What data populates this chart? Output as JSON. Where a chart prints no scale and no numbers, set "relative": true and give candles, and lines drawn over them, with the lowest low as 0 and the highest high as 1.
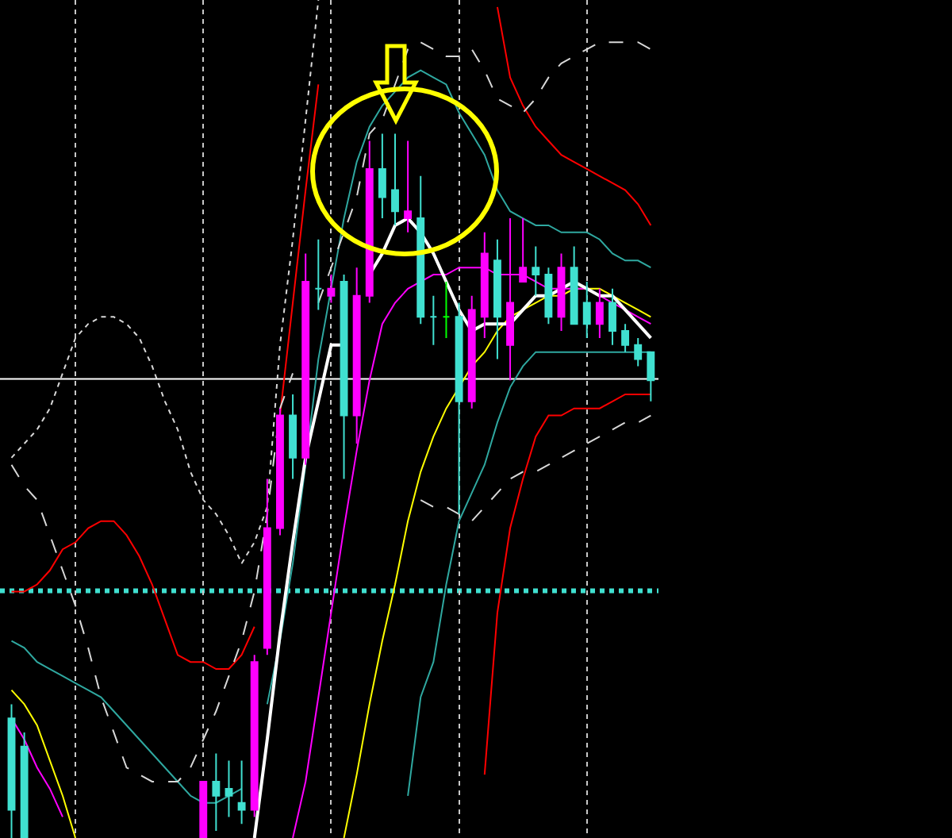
{
  "chart_data": {
    "type": "candlestick",
    "relative": true,
    "grid": "x",
    "categories": [
      null,
      null,
      null,
      null,
      null,
      null,
      null,
      null,
      null,
      null,
      null,
      null,
      null,
      null,
      null,
      null,
      null,
      null,
      null,
      null,
      null,
      null,
      null,
      null,
      null,
      null,
      null,
      null,
      null,
      null,
      null,
      null,
      null,
      null,
      null,
      null,
      null,
      null,
      null,
      null,
      null,
      null,
      null,
      null,
      null,
      null,
      null,
      null,
      null,
      null,
      null
    ],
    "ohlc": [
      [
        0.17,
        0.19,
        0,
        0.04
      ],
      [
        0.13,
        0.15,
        0,
        0
      ],
      null,
      null,
      null,
      null,
      null,
      null,
      null,
      null,
      null,
      null,
      null,
      null,
      null,
      [
        0,
        0.08,
        0,
        0.08
      ],
      [
        0.08,
        0.12,
        0.01,
        0.06
      ],
      [
        0.07,
        0.11,
        0.03,
        0.06
      ],
      [
        0.05,
        0.11,
        0.02,
        0.04
      ],
      [
        0.04,
        0.26,
        0.03,
        0.25
      ],
      [
        0.27,
        0.51,
        0.26,
        0.44
      ],
      [
        0.44,
        0.61,
        0.43,
        0.6
      ],
      [
        0.6,
        0.63,
        0.51,
        0.54
      ],
      [
        0.54,
        0.83,
        0.53,
        0.79
      ],
      [
        0.78,
        0.85,
        0.75,
        0.78
      ],
      [
        0.77,
        0.8,
        0.76,
        0.78
      ],
      [
        0.79,
        0.8,
        0.51,
        0.6
      ],
      [
        0.6,
        0.81,
        0.56,
        0.77
      ],
      [
        0.77,
        0.99,
        0.76,
        0.95
      ],
      [
        0.95,
        1,
        0.88,
        0.91
      ],
      [
        0.92,
        1,
        0.87,
        0.89
      ],
      [
        0.88,
        0.99,
        0.86,
        0.89
      ],
      [
        0.88,
        0.94,
        0.73,
        0.74
      ],
      [
        0.74,
        0.77,
        0.7,
        0.74
      ],
      [
        0.74,
        0.79,
        0.71,
        0.74
      ],
      [
        0.74,
        0.76,
        0.46,
        0.62
      ],
      [
        0.62,
        0.77,
        0.61,
        0.75
      ],
      [
        0.74,
        0.86,
        0.71,
        0.83
      ],
      [
        0.82,
        0.85,
        0.68,
        0.74
      ],
      [
        0.7,
        0.88,
        0.65,
        0.76
      ],
      [
        0.79,
        0.88,
        0.79,
        0.81
      ],
      [
        0.81,
        0.84,
        0.77,
        0.8
      ],
      [
        0.8,
        0.81,
        0.73,
        0.74
      ],
      [
        0.74,
        0.83,
        0.72,
        0.81
      ],
      [
        0.81,
        0.84,
        0.73,
        0.73
      ],
      [
        0.76,
        0.79,
        0.71,
        0.73
      ],
      [
        0.73,
        0.78,
        0.71,
        0.76
      ],
      [
        0.76,
        0.78,
        0.7,
        0.72
      ],
      [
        0.72,
        0.73,
        0.69,
        0.7
      ],
      [
        0.7,
        0.71,
        0.67,
        0.68
      ],
      [
        0.69,
        0.69,
        0.62,
        0.65
      ]
    ],
    "colors": [
      "#40e0d0",
      "#40e0d0",
      null,
      null,
      null,
      null,
      null,
      null,
      null,
      null,
      null,
      null,
      null,
      null,
      null,
      "#ff00ff",
      "#40e0d0",
      "#40e0d0",
      "#40e0d0",
      "#ff00ff",
      "#ff00ff",
      "#ff00ff",
      "#40e0d0",
      "#ff00ff",
      "#40e0d0",
      "#ff00ff",
      "#40e0d0",
      "#ff00ff",
      "#ff00ff",
      "#40e0d0",
      "#40e0d0",
      "#ff00ff",
      "#40e0d0",
      "#40e0d0",
      "#00ff00",
      "#40e0d0",
      "#ff00ff",
      "#ff00ff",
      "#40e0d0",
      "#ff00ff",
      "#ff00ff",
      "#40e0d0",
      "#40e0d0",
      "#ff00ff",
      "#40e0d0",
      "#40e0d0",
      "#ff00ff",
      "#40e0d0",
      "#40e0d0",
      "#40e0d0",
      "#40e0d0"
    ],
    "series": [
      {
        "type": "line",
        "color": "#ff0000",
        "line_style": "solid",
        "values": [
          0.35,
          0.35,
          0.36,
          0.38,
          0.41,
          0.42,
          0.44,
          0.45,
          0.45,
          0.43,
          0.4,
          0.36,
          0.31,
          0.26,
          0.25,
          0.25,
          0.24,
          0.24,
          0.26,
          0.3,
          null,
          0.6,
          0.76,
          0.92,
          1.07,
          null,
          null,
          null,
          null,
          null,
          null,
          null,
          null,
          null,
          null,
          null,
          null,
          null,
          null,
          null,
          null,
          null,
          null,
          null,
          null,
          null,
          null,
          null,
          null,
          null,
          null
        ]
      },
      {
        "type": "line",
        "color": "#ff0000",
        "line_style": "solid",
        "values": [
          null,
          null,
          null,
          null,
          null,
          null,
          null,
          null,
          null,
          null,
          null,
          null,
          null,
          null,
          null,
          null,
          null,
          null,
          null,
          null,
          null,
          null,
          null,
          null,
          null,
          null,
          null,
          null,
          null,
          null,
          null,
          null,
          null,
          null,
          null,
          null,
          null,
          null,
          1.18,
          1.08,
          1.04,
          1.01,
          0.99,
          0.97,
          0.96,
          0.95,
          0.94,
          0.93,
          0.92,
          0.9,
          0.87
        ]
      },
      {
        "type": "line",
        "color": "#ff0000",
        "line_style": "solid",
        "values": [
          null,
          null,
          null,
          null,
          null,
          null,
          null,
          null,
          null,
          null,
          null,
          null,
          null,
          null,
          null,
          null,
          null,
          null,
          null,
          null,
          null,
          null,
          null,
          null,
          null,
          null,
          null,
          null,
          null,
          null,
          null,
          null,
          null,
          null,
          null,
          null,
          null,
          0.09,
          0.32,
          0.44,
          0.51,
          0.57,
          0.6,
          0.6,
          0.61,
          0.61,
          0.61,
          0.62,
          0.63,
          0.63,
          0.63
        ]
      },
      {
        "type": "line",
        "color": "#2fa8a0",
        "line_style": "solid",
        "values": [
          0.28,
          0.27,
          0.25,
          0.24,
          0.23,
          0.22,
          0.21,
          0.2,
          0.18,
          0.16,
          0.14,
          0.12,
          0.1,
          0.08,
          0.06,
          0.05,
          0.05,
          0.06,
          0.07,
          null,
          0.19,
          0.28,
          0.39,
          0.53,
          0.68,
          0.78,
          0.88,
          0.96,
          1.01,
          1.04,
          1.06,
          1.08,
          1.09,
          1.08,
          1.07,
          1.03,
          1,
          0.97,
          0.92,
          0.89,
          0.88,
          0.87,
          0.87,
          0.86,
          0.86,
          0.86,
          0.85,
          0.83,
          0.82,
          0.82,
          0.81
        ]
      },
      {
        "type": "line",
        "color": "#2fa8a0",
        "line_style": "solid",
        "values": [
          null,
          null,
          null,
          null,
          null,
          null,
          null,
          null,
          null,
          null,
          null,
          null,
          null,
          null,
          null,
          null,
          null,
          null,
          null,
          null,
          null,
          null,
          null,
          null,
          null,
          null,
          null,
          null,
          null,
          null,
          null,
          0.06,
          0.2,
          0.25,
          0.36,
          0.45,
          0.49,
          0.53,
          0.59,
          0.64,
          0.67,
          0.69,
          0.69,
          0.69,
          0.69,
          0.69,
          0.69,
          0.69,
          0.69,
          0.69,
          0.69
        ]
      },
      {
        "type": "line",
        "color": "#d8d8d8",
        "line_style": "dashed",
        "values": [
          0.53,
          0.5,
          0.48,
          0.43,
          0.38,
          0.33,
          0.27,
          0.2,
          0.15,
          0.1,
          0.09,
          0.08,
          0.08,
          0.08,
          0.1,
          0.14,
          0.18,
          0.23,
          0.28,
          0.35,
          0.46,
          0.61,
          0.66,
          null,
          0.76,
          0.81,
          0.86,
          0.91,
          1,
          1.02,
          1.07,
          1.12,
          1.13,
          1.12,
          1.11,
          1.11,
          1.12,
          1.09,
          1.05,
          1.04,
          1.03,
          1.05,
          1.08,
          1.1,
          1.11,
          1.12,
          1.13,
          1.13,
          1.13,
          1.13,
          1.12
        ]
      },
      {
        "type": "line",
        "color": "#d8d8d8",
        "line_style": "dashed",
        "values": [
          null,
          null,
          null,
          null,
          null,
          null,
          null,
          null,
          null,
          null,
          null,
          null,
          null,
          null,
          null,
          null,
          null,
          null,
          null,
          null,
          null,
          null,
          null,
          null,
          null,
          null,
          null,
          null,
          null,
          null,
          null,
          null,
          0.48,
          0.47,
          0.47,
          0.46,
          0.45,
          0.47,
          0.49,
          0.51,
          0.52,
          0.52,
          0.53,
          0.54,
          0.55,
          0.56,
          0.57,
          0.58,
          0.59,
          0.59,
          0.6
        ]
      },
      {
        "type": "line",
        "color": "#d8d8d8",
        "line_style": "dotted",
        "values": [
          0.54,
          0.56,
          0.58,
          0.61,
          0.66,
          0.71,
          0.73,
          0.74,
          0.74,
          0.73,
          0.71,
          0.67,
          0.62,
          0.58,
          0.52,
          0.48,
          0.46,
          0.43,
          0.39,
          0.42,
          0.47,
          0.7,
          0.85,
          1.02,
          1.19,
          null,
          null,
          null,
          null,
          null,
          null,
          null,
          null,
          null,
          null,
          null,
          null,
          null,
          null,
          null,
          null,
          null,
          null,
          null,
          null,
          null,
          null,
          null,
          null,
          null,
          null
        ]
      },
      {
        "type": "line",
        "color": "#ffff00",
        "line_style": "solid",
        "values": [
          0.21,
          0.19,
          0.16,
          0.11,
          0.06,
          0,
          null,
          null,
          null,
          null,
          null,
          null,
          null,
          null,
          null,
          null,
          null,
          null,
          null,
          null,
          null,
          null,
          null,
          null,
          null,
          null,
          0,
          0.09,
          0.19,
          0.28,
          0.36,
          0.45,
          0.52,
          0.57,
          0.61,
          0.64,
          0.67,
          0.69,
          0.72,
          0.74,
          0.75,
          0.76,
          0.77,
          0.77,
          0.78,
          0.78,
          0.78,
          0.77,
          0.76,
          0.75,
          0.74
        ]
      },
      {
        "type": "line",
        "color": "#ff00ff",
        "line_style": "solid",
        "values": [
          0.17,
          0.14,
          0.1,
          0.07,
          0.03,
          null,
          null,
          null,
          null,
          null,
          null,
          null,
          null,
          null,
          null,
          null,
          null,
          null,
          null,
          null,
          null,
          null,
          0,
          0.08,
          0.2,
          0.32,
          0.44,
          0.55,
          0.65,
          0.73,
          0.76,
          0.78,
          0.79,
          0.8,
          0.8,
          0.81,
          0.81,
          0.81,
          0.8,
          0.8,
          0.8,
          0.79,
          0.78,
          0.78,
          0.78,
          0.78,
          0.77,
          0.76,
          0.75,
          0.74,
          0.73
        ]
      },
      {
        "type": "line",
        "color": "#ffffff",
        "line_style": "solid",
        "values": [
          null,
          null,
          null,
          null,
          null,
          null,
          null,
          null,
          null,
          null,
          null,
          null,
          null,
          null,
          null,
          null,
          null,
          null,
          null,
          0,
          0.14,
          0.29,
          0.42,
          0.54,
          0.62,
          0.7,
          0.7,
          null,
          0.8,
          0.83,
          0.87,
          0.88,
          0.86,
          0.83,
          0.79,
          0.75,
          0.72,
          0.73,
          0.73,
          0.73,
          0.75,
          0.77,
          0.77,
          0.78,
          0.79,
          0.78,
          0.77,
          0.77,
          0.75,
          0.73,
          0.71
        ]
      }
    ],
    "ref_lines": [
      {
        "axis": "y",
        "value": 0.652,
        "color": "#ffffff",
        "line_style": "solid"
      },
      {
        "axis": "y",
        "value": 0.351,
        "color": "#40e0d0",
        "line_style": "dotted"
      }
    ]
  }
}
